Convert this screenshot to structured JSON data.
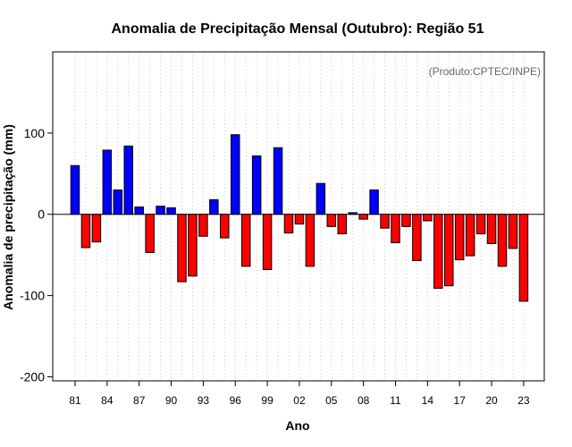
{
  "chart_data": {
    "type": "bar",
    "title": "Anomalia de Precipitação Mensal (Outubro): Região 51",
    "xlabel": "Ano",
    "ylabel": "Anomalia de precipitação (mm)",
    "credit": "(Produto:CPTEC/INPE)",
    "ylim": [
      -205,
      200
    ],
    "y_ticks": [
      -200,
      -100,
      0,
      100
    ],
    "x_tick_labels": [
      "81",
      "84",
      "87",
      "90",
      "93",
      "96",
      "99",
      "02",
      "05",
      "08",
      "11",
      "14",
      "17",
      "20",
      "23"
    ],
    "x_tick_years": [
      1981,
      1984,
      1987,
      1990,
      1993,
      1996,
      1999,
      2002,
      2005,
      2008,
      2011,
      2014,
      2017,
      2020,
      2023
    ],
    "grid": "vertical dotted lines at each year",
    "positive_color": "#0000ff",
    "negative_color": "#ff0000",
    "years": [
      1981,
      1982,
      1983,
      1984,
      1985,
      1986,
      1987,
      1988,
      1989,
      1990,
      1991,
      1992,
      1993,
      1994,
      1995,
      1996,
      1997,
      1998,
      1999,
      2000,
      2001,
      2002,
      2003,
      2004,
      2005,
      2006,
      2007,
      2008,
      2009,
      2010,
      2011,
      2012,
      2013,
      2014,
      2015,
      2016,
      2017,
      2018,
      2019,
      2020,
      2021,
      2022,
      2023
    ],
    "values": [
      60,
      -41,
      -34,
      79,
      30,
      84,
      9,
      -47,
      10,
      8,
      -83,
      -76,
      -27,
      18,
      -29,
      98,
      -64,
      72,
      -68,
      82,
      -23,
      -12,
      -64,
      38,
      -15,
      -24,
      2,
      -6,
      30,
      -17,
      -35,
      -15,
      -57,
      -8,
      -91,
      -88,
      -56,
      -51,
      -24,
      -36,
      -64,
      -42,
      -107
    ]
  }
}
